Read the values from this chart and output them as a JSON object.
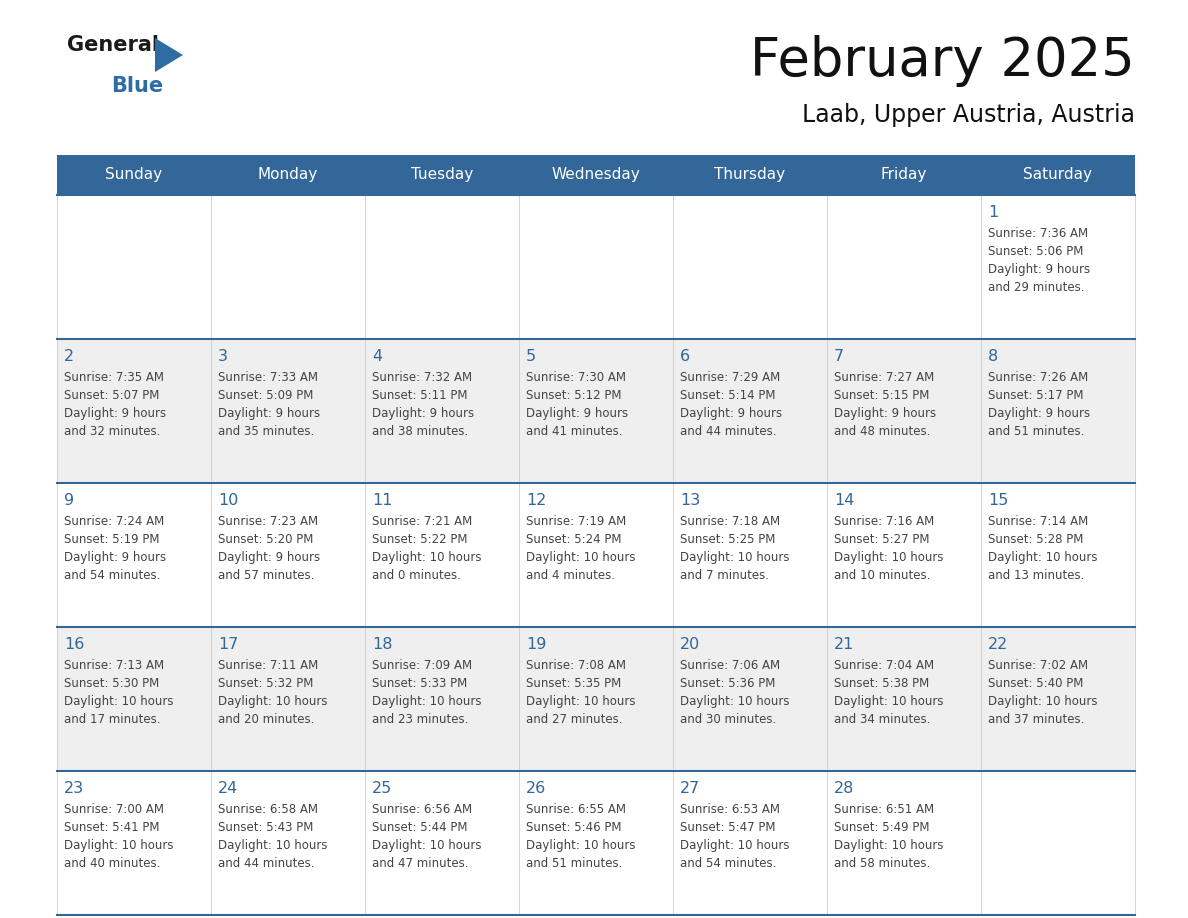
{
  "title": "February 2025",
  "subtitle": "Laab, Upper Austria, Austria",
  "days_of_week": [
    "Sunday",
    "Monday",
    "Tuesday",
    "Wednesday",
    "Thursday",
    "Friday",
    "Saturday"
  ],
  "header_bg": "#336699",
  "header_text": "#FFFFFF",
  "cell_bg_gray": "#EFEFEF",
  "cell_bg_white": "#FFFFFF",
  "day_num_color": "#336699",
  "text_color": "#444444",
  "border_color": "#336699",
  "grid_color": "#CCCCCC",
  "logo_general_color": "#1a1a1a",
  "logo_blue_color": "#2E6DA4",
  "calendar_data": [
    [
      {
        "day": null,
        "sunrise": null,
        "sunset": null,
        "daylight": null
      },
      {
        "day": null,
        "sunrise": null,
        "sunset": null,
        "daylight": null
      },
      {
        "day": null,
        "sunrise": null,
        "sunset": null,
        "daylight": null
      },
      {
        "day": null,
        "sunrise": null,
        "sunset": null,
        "daylight": null
      },
      {
        "day": null,
        "sunrise": null,
        "sunset": null,
        "daylight": null
      },
      {
        "day": null,
        "sunrise": null,
        "sunset": null,
        "daylight": null
      },
      {
        "day": 1,
        "sunrise": "7:36 AM",
        "sunset": "5:06 PM",
        "daylight": "9 hours\nand 29 minutes."
      }
    ],
    [
      {
        "day": 2,
        "sunrise": "7:35 AM",
        "sunset": "5:07 PM",
        "daylight": "9 hours\nand 32 minutes."
      },
      {
        "day": 3,
        "sunrise": "7:33 AM",
        "sunset": "5:09 PM",
        "daylight": "9 hours\nand 35 minutes."
      },
      {
        "day": 4,
        "sunrise": "7:32 AM",
        "sunset": "5:11 PM",
        "daylight": "9 hours\nand 38 minutes."
      },
      {
        "day": 5,
        "sunrise": "7:30 AM",
        "sunset": "5:12 PM",
        "daylight": "9 hours\nand 41 minutes."
      },
      {
        "day": 6,
        "sunrise": "7:29 AM",
        "sunset": "5:14 PM",
        "daylight": "9 hours\nand 44 minutes."
      },
      {
        "day": 7,
        "sunrise": "7:27 AM",
        "sunset": "5:15 PM",
        "daylight": "9 hours\nand 48 minutes."
      },
      {
        "day": 8,
        "sunrise": "7:26 AM",
        "sunset": "5:17 PM",
        "daylight": "9 hours\nand 51 minutes."
      }
    ],
    [
      {
        "day": 9,
        "sunrise": "7:24 AM",
        "sunset": "5:19 PM",
        "daylight": "9 hours\nand 54 minutes."
      },
      {
        "day": 10,
        "sunrise": "7:23 AM",
        "sunset": "5:20 PM",
        "daylight": "9 hours\nand 57 minutes."
      },
      {
        "day": 11,
        "sunrise": "7:21 AM",
        "sunset": "5:22 PM",
        "daylight": "10 hours\nand 0 minutes."
      },
      {
        "day": 12,
        "sunrise": "7:19 AM",
        "sunset": "5:24 PM",
        "daylight": "10 hours\nand 4 minutes."
      },
      {
        "day": 13,
        "sunrise": "7:18 AM",
        "sunset": "5:25 PM",
        "daylight": "10 hours\nand 7 minutes."
      },
      {
        "day": 14,
        "sunrise": "7:16 AM",
        "sunset": "5:27 PM",
        "daylight": "10 hours\nand 10 minutes."
      },
      {
        "day": 15,
        "sunrise": "7:14 AM",
        "sunset": "5:28 PM",
        "daylight": "10 hours\nand 13 minutes."
      }
    ],
    [
      {
        "day": 16,
        "sunrise": "7:13 AM",
        "sunset": "5:30 PM",
        "daylight": "10 hours\nand 17 minutes."
      },
      {
        "day": 17,
        "sunrise": "7:11 AM",
        "sunset": "5:32 PM",
        "daylight": "10 hours\nand 20 minutes."
      },
      {
        "day": 18,
        "sunrise": "7:09 AM",
        "sunset": "5:33 PM",
        "daylight": "10 hours\nand 23 minutes."
      },
      {
        "day": 19,
        "sunrise": "7:08 AM",
        "sunset": "5:35 PM",
        "daylight": "10 hours\nand 27 minutes."
      },
      {
        "day": 20,
        "sunrise": "7:06 AM",
        "sunset": "5:36 PM",
        "daylight": "10 hours\nand 30 minutes."
      },
      {
        "day": 21,
        "sunrise": "7:04 AM",
        "sunset": "5:38 PM",
        "daylight": "10 hours\nand 34 minutes."
      },
      {
        "day": 22,
        "sunrise": "7:02 AM",
        "sunset": "5:40 PM",
        "daylight": "10 hours\nand 37 minutes."
      }
    ],
    [
      {
        "day": 23,
        "sunrise": "7:00 AM",
        "sunset": "5:41 PM",
        "daylight": "10 hours\nand 40 minutes."
      },
      {
        "day": 24,
        "sunrise": "6:58 AM",
        "sunset": "5:43 PM",
        "daylight": "10 hours\nand 44 minutes."
      },
      {
        "day": 25,
        "sunrise": "6:56 AM",
        "sunset": "5:44 PM",
        "daylight": "10 hours\nand 47 minutes."
      },
      {
        "day": 26,
        "sunrise": "6:55 AM",
        "sunset": "5:46 PM",
        "daylight": "10 hours\nand 51 minutes."
      },
      {
        "day": 27,
        "sunrise": "6:53 AM",
        "sunset": "5:47 PM",
        "daylight": "10 hours\nand 54 minutes."
      },
      {
        "day": 28,
        "sunrise": "6:51 AM",
        "sunset": "5:49 PM",
        "daylight": "10 hours\nand 58 minutes."
      },
      {
        "day": null,
        "sunrise": null,
        "sunset": null,
        "daylight": null
      }
    ]
  ]
}
